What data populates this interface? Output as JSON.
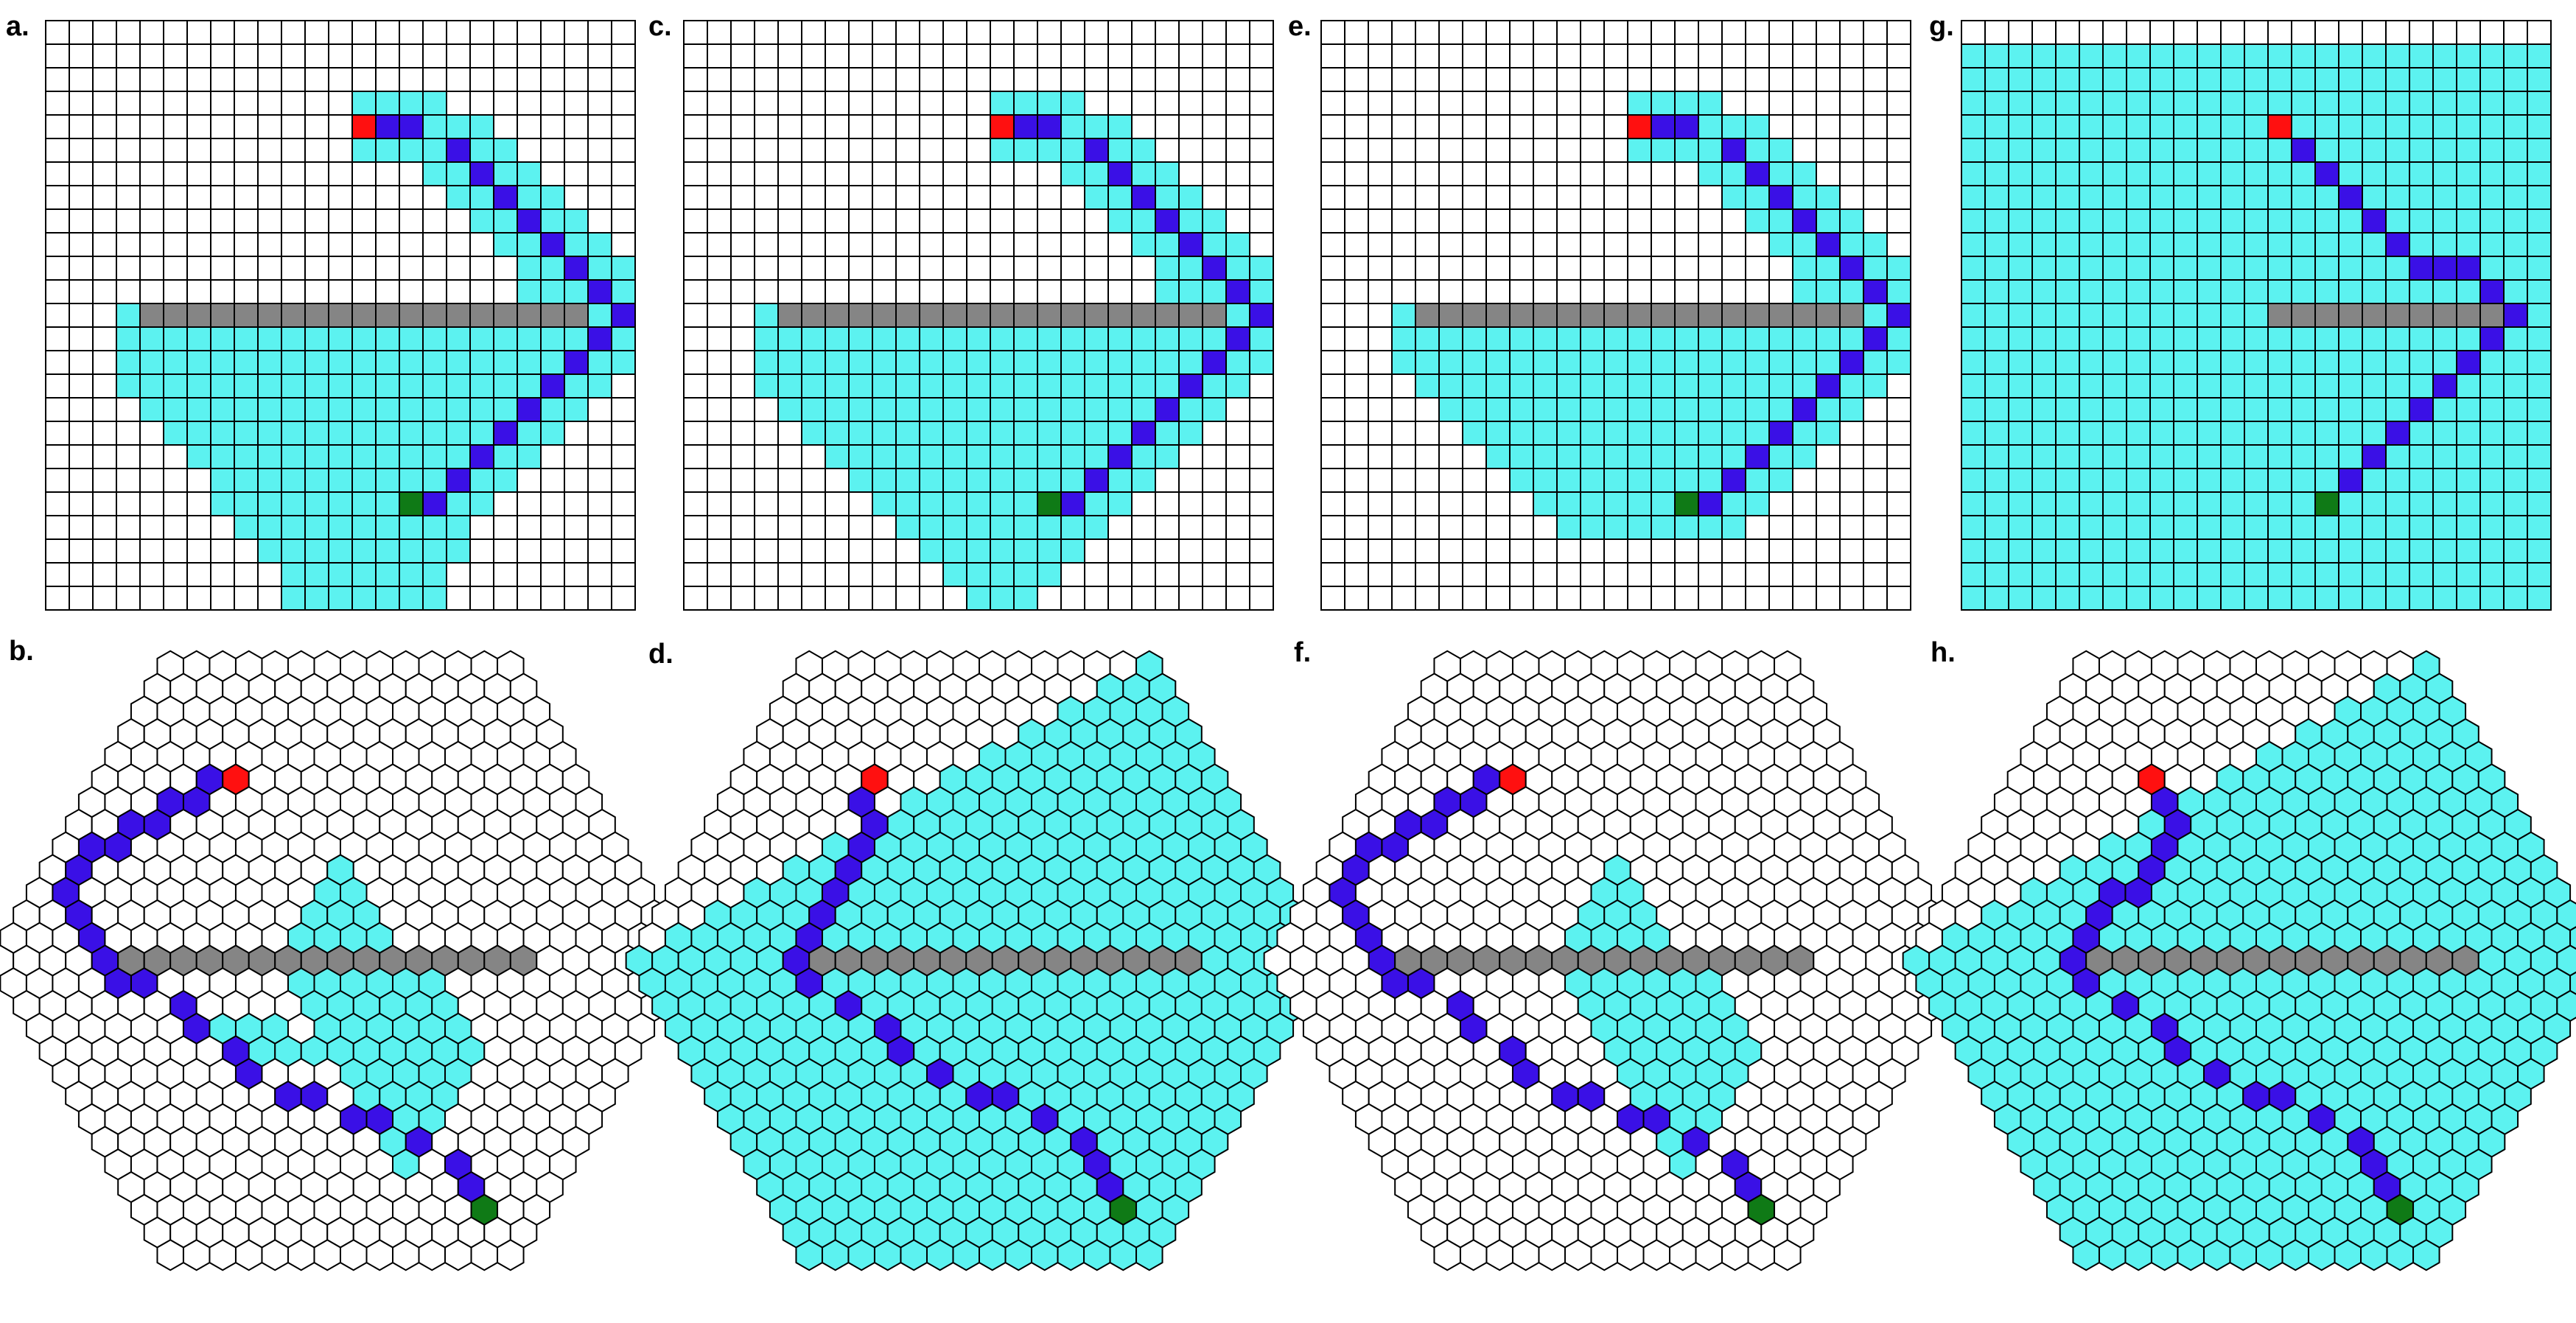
{
  "colors": {
    "empty": "#ffffff",
    "explored": "#5cf2f0",
    "path": "#3a10e6",
    "start": "#ff1010",
    "goal": "#0f7a16",
    "obstacle": "#858585",
    "cell_stroke": "#000000"
  },
  "legend_codes": {
    "0": "empty cell",
    "1": "explored cell",
    "2": "path cell",
    "3": "start",
    "4": "goal",
    "5": "obstacle"
  },
  "panels": [
    {
      "label": "a.",
      "type": "square",
      "rows": [
        "0000000000000000000000000",
        "0000000000000000000000000",
        "0000000000000000000000000",
        "0000000000000111100000000",
        "0000000000000322111000000",
        "0000000000000111121100000",
        "0000000000000000112110000",
        "0000000000000000011211000",
        "0000000000000000001121100",
        "0000000000000000000112110",
        "0000000000000000000011211",
        "0000000000000000000011121",
        "0001555555555555555555512",
        "0001111111111111111111121",
        "0001111111111111111111211",
        "0001111111111111111112110",
        "0000111111111111111121100",
        "0000011111111111111211000",
        "0000001111111111112110000",
        "0000000111111111121100000",
        "0000000111111114211000000",
        "0000000011111111110000000",
        "0000000001111111110000000",
        "0000000000111111100000000",
        "0000000000111111100000000"
      ]
    },
    {
      "label": "c.",
      "type": "square",
      "rows": [
        "0000000000000000000000000",
        "0000000000000000000000000",
        "0000000000000000000000000",
        "0000000000000111100000000",
        "0000000000000322111000000",
        "0000000000000111121100000",
        "0000000000000000112110000",
        "0000000000000000011211000",
        "0000000000000000001121100",
        "0000000000000000000112110",
        "0000000000000000000011211",
        "0000000000000000000011121",
        "0001555555555555555555512",
        "0001111111111111111111121",
        "0001111111111111111111211",
        "0001111111111111111112110",
        "0000111111111111111121100",
        "0000011111111111111211000",
        "0000001111111111112110000",
        "0000000111111111121100000",
        "0000000011111114211000000",
        "0000000001111111110000000",
        "0000000000111111100000000",
        "0000000000011111000000000",
        "0000000000001110000000000"
      ]
    },
    {
      "label": "e.",
      "type": "square",
      "rows": [
        "0000000000000000000000000",
        "0000000000000000000000000",
        "0000000000000000000000000",
        "0000000000000111100000000",
        "0000000000000322111000000",
        "0000000000000111121100000",
        "0000000000000000112110000",
        "0000000000000000011211000",
        "0000000000000000001121100",
        "0000000000000000000112110",
        "0000000000000000000011211",
        "0000000000000000000011121",
        "0001555555555555555555512",
        "0001111111111111111111121",
        "0001111111111111111111211",
        "0000111111111111111112110",
        "0000011111111111111121100",
        "0000001111111111111211000",
        "0000000111111111112110000",
        "0000000011111111121100000",
        "0000000001111114211000000",
        "0000000000111111110000000",
        "0000000000000000000000000",
        "0000000000000000000000000",
        "0000000000000000000000000"
      ]
    },
    {
      "label": "g.",
      "type": "square",
      "rows": [
        "0000000000000000000000000",
        "1111111111111111111111111",
        "1111111111111111111111111",
        "1111111111111111111111111",
        "1111111111111311111111111",
        "1111111111111121111111111",
        "1111111111111112111111111",
        "1111111111111111211111111",
        "1111111111111111121111111",
        "1111111111111111112111111",
        "1111111111111111111222111",
        "1111111111111111111111211",
        "1111111111111555555555521",
        "1111111111111111111111211",
        "1111111111111111111112111",
        "1111111111111111111121111",
        "1111111111111111111211111",
        "1111111111111111112111111",
        "1111111111111111121111111",
        "1111111111111111211111111",
        "1111111111111114111111111",
        "1111111111111111111111111",
        "1111111111111111111111111",
        "1111111111111111111111111",
        "1111111111111111111111111"
      ]
    },
    {
      "label": "b.",
      "type": "hex",
      "radius": 13,
      "explored_rows": [
        [
          1,
          11,
          3
        ],
        [
          2,
          11,
          4
        ],
        [
          3,
          11,
          5
        ],
        [
          4,
          11,
          6
        ],
        [
          5,
          11,
          7
        ],
        [
          6,
          11,
          8
        ],
        [
          7,
          11,
          9
        ],
        [
          8,
          11,
          10
        ],
        [
          9,
          11,
          11
        ],
        [
          10,
          11,
          12
        ],
        [
          11,
          11,
          13
        ],
        [
          12,
          11,
          14
        ],
        [
          13,
          11,
          15
        ],
        [
          14,
          11,
          16
        ],
        [
          15,
          11,
          16
        ],
        [
          16,
          11,
          16
        ],
        [
          17,
          11,
          16
        ],
        [
          18,
          11,
          15
        ],
        [
          19,
          11,
          14
        ],
        [
          20,
          11,
          13
        ],
        [
          21,
          11,
          12
        ],
        [
          22,
          11,
          11
        ],
        [
          23,
          11,
          10
        ],
        [
          24,
          11,
          9
        ],
        [
          25,
          11,
          8
        ],
        [
          26,
          11,
          7
        ],
        [
          27,
          11,
          6
        ]
      ],
      "sparse": [
        [
          -4,
          3,
          1
        ],
        [
          -5,
          3,
          1
        ],
        [
          -6,
          3,
          1
        ],
        [
          -4,
          4,
          1
        ],
        [
          -5,
          4,
          1
        ],
        [
          -3,
          4,
          1
        ],
        [
          -2,
          4,
          1
        ],
        [
          -1,
          4,
          1
        ]
      ],
      "path": [
        [
          0,
          -8
        ],
        [
          -1,
          -8
        ],
        [
          -2,
          -7
        ],
        [
          -3,
          -7
        ],
        [
          -4,
          -6
        ],
        [
          -5,
          -6
        ],
        [
          -6,
          -5
        ],
        [
          -7,
          -5
        ],
        [
          -8,
          -4
        ],
        [
          -9,
          -3
        ],
        [
          -9,
          -2
        ],
        [
          -9,
          -1
        ],
        [
          -9,
          0
        ],
        [
          -9,
          1
        ],
        [
          -8,
          1
        ],
        [
          -7,
          2
        ],
        [
          -7,
          3
        ],
        [
          -6,
          4
        ],
        [
          -6,
          5
        ],
        [
          -5,
          6
        ],
        [
          -4,
          6
        ],
        [
          -3,
          7
        ],
        [
          -2,
          7
        ],
        [
          -1,
          8
        ],
        [
          0,
          9
        ],
        [
          0,
          10
        ]
      ],
      "start": [
        0,
        -8
      ],
      "goal": [
        0,
        11
      ],
      "obstacles": [
        [
          -8,
          0
        ],
        [
          -7,
          0
        ],
        [
          -6,
          0
        ],
        [
          -5,
          0
        ],
        [
          -4,
          0
        ],
        [
          -3,
          0
        ],
        [
          -2,
          0
        ],
        [
          -1,
          0
        ],
        [
          0,
          0
        ],
        [
          1,
          0
        ],
        [
          2,
          0
        ],
        [
          3,
          0
        ],
        [
          4,
          0
        ],
        [
          5,
          0
        ],
        [
          6,
          0
        ],
        [
          7,
          0
        ]
      ]
    },
    {
      "label": "d.",
      "type": "hex",
      "radius": 13,
      "explored_rows": [
        [
          0,
          13,
          26
        ],
        [
          1,
          12,
          26
        ],
        [
          2,
          11,
          26
        ],
        [
          3,
          10,
          26
        ],
        [
          4,
          9,
          26
        ],
        [
          5,
          8,
          26
        ],
        [
          6,
          7,
          26
        ],
        [
          7,
          6,
          26
        ],
        [
          8,
          5,
          26
        ],
        [
          9,
          4,
          26
        ],
        [
          10,
          3,
          26
        ],
        [
          11,
          2,
          26
        ],
        [
          12,
          1,
          26
        ],
        [
          13,
          0,
          26
        ],
        [
          14,
          0,
          25
        ],
        [
          15,
          0,
          24
        ],
        [
          16,
          0,
          23
        ],
        [
          17,
          0,
          22
        ],
        [
          18,
          0,
          21
        ],
        [
          19,
          0,
          20
        ],
        [
          20,
          0,
          19
        ],
        [
          21,
          0,
          18
        ],
        [
          22,
          0,
          17
        ],
        [
          23,
          0,
          16
        ],
        [
          24,
          0,
          15
        ],
        [
          25,
          0,
          14
        ],
        [
          26,
          0,
          13
        ]
      ],
      "sparse": [
        [
          -9,
          0,
          1
        ],
        [
          -8,
          0,
          1
        ]
      ],
      "path": [
        [
          0,
          -8
        ],
        [
          -1,
          -7
        ],
        [
          -1,
          -6
        ],
        [
          -2,
          -5
        ],
        [
          -3,
          -4
        ],
        [
          -4,
          -3
        ],
        [
          -5,
          -2
        ],
        [
          -6,
          -1
        ],
        [
          -7,
          0
        ],
        [
          -7,
          1
        ],
        [
          -6,
          2
        ],
        [
          -5,
          3
        ],
        [
          -5,
          4
        ],
        [
          -4,
          5
        ],
        [
          -3,
          6
        ],
        [
          -2,
          6
        ],
        [
          -1,
          7
        ],
        [
          0,
          8
        ],
        [
          0,
          9
        ],
        [
          0,
          10
        ]
      ],
      "start": [
        0,
        -8
      ],
      "goal": [
        0,
        11
      ],
      "obstacles": [
        [
          -6,
          0
        ],
        [
          -5,
          0
        ],
        [
          -4,
          0
        ],
        [
          -3,
          0
        ],
        [
          -2,
          0
        ],
        [
          -1,
          0
        ],
        [
          0,
          0
        ],
        [
          1,
          0
        ],
        [
          2,
          0
        ],
        [
          3,
          0
        ],
        [
          4,
          0
        ],
        [
          5,
          0
        ],
        [
          6,
          0
        ],
        [
          7,
          0
        ],
        [
          8,
          0
        ]
      ]
    },
    {
      "label": "f.",
      "type": "hex",
      "radius": 13,
      "explored_rows": [
        [
          1,
          11,
          3
        ],
        [
          2,
          11,
          4
        ],
        [
          3,
          11,
          5
        ],
        [
          4,
          11,
          6
        ],
        [
          5,
          11,
          7
        ],
        [
          6,
          11,
          8
        ],
        [
          7,
          11,
          9
        ],
        [
          8,
          11,
          10
        ],
        [
          9,
          11,
          11
        ],
        [
          10,
          11,
          12
        ],
        [
          11,
          11,
          13
        ],
        [
          12,
          11,
          14
        ],
        [
          13,
          11,
          15
        ],
        [
          14,
          11,
          16
        ],
        [
          15,
          11,
          16
        ],
        [
          16,
          11,
          16
        ],
        [
          17,
          11,
          16
        ],
        [
          18,
          11,
          15
        ],
        [
          19,
          11,
          14
        ],
        [
          20,
          11,
          13
        ],
        [
          21,
          11,
          12
        ],
        [
          22,
          11,
          11
        ],
        [
          23,
          11,
          10
        ],
        [
          24,
          11,
          9
        ],
        [
          25,
          11,
          8
        ],
        [
          26,
          11,
          7
        ],
        [
          27,
          11,
          6
        ]
      ],
      "sparse": [],
      "path": [
        [
          0,
          -8
        ],
        [
          -1,
          -8
        ],
        [
          -2,
          -7
        ],
        [
          -3,
          -7
        ],
        [
          -4,
          -6
        ],
        [
          -5,
          -6
        ],
        [
          -6,
          -5
        ],
        [
          -7,
          -5
        ],
        [
          -8,
          -4
        ],
        [
          -9,
          -3
        ],
        [
          -9,
          -2
        ],
        [
          -9,
          -1
        ],
        [
          -9,
          0
        ],
        [
          -9,
          1
        ],
        [
          -8,
          1
        ],
        [
          -7,
          2
        ],
        [
          -7,
          3
        ],
        [
          -6,
          4
        ],
        [
          -6,
          5
        ],
        [
          -5,
          6
        ],
        [
          -4,
          6
        ],
        [
          -3,
          7
        ],
        [
          -2,
          7
        ],
        [
          -1,
          8
        ],
        [
          0,
          9
        ],
        [
          0,
          10
        ]
      ],
      "start": [
        0,
        -8
      ],
      "goal": [
        0,
        11
      ],
      "obstacles": [
        [
          -8,
          0
        ],
        [
          -7,
          0
        ],
        [
          -6,
          0
        ],
        [
          -5,
          0
        ],
        [
          -4,
          0
        ],
        [
          -3,
          0
        ],
        [
          -2,
          0
        ],
        [
          -1,
          0
        ],
        [
          0,
          0
        ],
        [
          1,
          0
        ],
        [
          2,
          0
        ],
        [
          3,
          0
        ],
        [
          4,
          0
        ],
        [
          5,
          0
        ],
        [
          6,
          0
        ],
        [
          7,
          0
        ]
      ]
    },
    {
      "label": "h.",
      "type": "hex",
      "radius": 13,
      "explored_rows": [
        [
          0,
          13,
          26
        ],
        [
          1,
          12,
          26
        ],
        [
          2,
          11,
          26
        ],
        [
          3,
          10,
          26
        ],
        [
          4,
          9,
          26
        ],
        [
          5,
          8,
          26
        ],
        [
          6,
          7,
          26
        ],
        [
          7,
          6,
          26
        ],
        [
          8,
          5,
          26
        ],
        [
          9,
          4,
          26
        ],
        [
          10,
          3,
          26
        ],
        [
          11,
          2,
          26
        ],
        [
          12,
          1,
          26
        ],
        [
          13,
          0,
          26
        ],
        [
          14,
          0,
          25
        ],
        [
          15,
          0,
          24
        ],
        [
          16,
          0,
          23
        ],
        [
          17,
          0,
          22
        ],
        [
          18,
          0,
          21
        ],
        [
          19,
          0,
          20
        ],
        [
          20,
          0,
          19
        ],
        [
          21,
          0,
          18
        ],
        [
          22,
          0,
          17
        ],
        [
          23,
          0,
          16
        ],
        [
          24,
          0,
          15
        ],
        [
          25,
          0,
          14
        ],
        [
          26,
          0,
          13
        ]
      ],
      "sparse": [],
      "path": [
        [
          0,
          -8
        ],
        [
          0,
          -7
        ],
        [
          0,
          -6
        ],
        [
          -1,
          -5
        ],
        [
          -2,
          -4
        ],
        [
          -3,
          -3
        ],
        [
          -4,
          -3
        ],
        [
          -5,
          -2
        ],
        [
          -6,
          -1
        ],
        [
          -7,
          0
        ],
        [
          -7,
          1
        ],
        [
          -6,
          2
        ],
        [
          -5,
          3
        ],
        [
          -5,
          4
        ],
        [
          -4,
          5
        ],
        [
          -3,
          6
        ],
        [
          -2,
          6
        ],
        [
          -1,
          7
        ],
        [
          0,
          8
        ],
        [
          0,
          9
        ],
        [
          0,
          10
        ]
      ],
      "start": [
        0,
        -8
      ],
      "goal": [
        0,
        11
      ],
      "obstacles": [
        [
          -6,
          0
        ],
        [
          -5,
          0
        ],
        [
          -4,
          0
        ],
        [
          -3,
          0
        ],
        [
          -2,
          0
        ],
        [
          -1,
          0
        ],
        [
          0,
          0
        ],
        [
          1,
          0
        ],
        [
          2,
          0
        ],
        [
          3,
          0
        ],
        [
          4,
          0
        ],
        [
          5,
          0
        ],
        [
          6,
          0
        ],
        [
          7,
          0
        ],
        [
          8,
          0
        ]
      ]
    }
  ]
}
